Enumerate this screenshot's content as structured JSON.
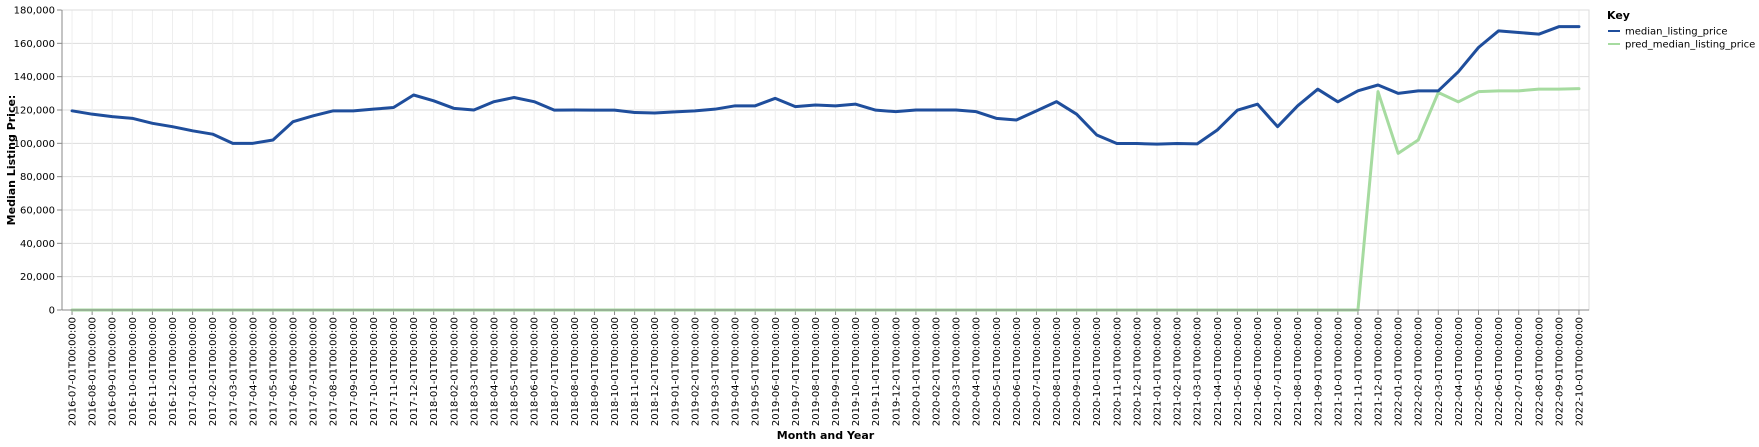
{
  "chart_data": {
    "type": "line",
    "xlabel": "Month and Year",
    "ylabel": "Median Listing Price:",
    "ylim": [
      0,
      180000
    ],
    "yticks": [
      "0",
      "20,000",
      "40,000",
      "60,000",
      "80,000",
      "100,000",
      "120,000",
      "140,000",
      "160,000",
      "180,000"
    ],
    "grid": true,
    "legend": {
      "title": "Key",
      "placement": "right"
    },
    "x": [
      "2016-07-01T00:00:00",
      "2016-08-01T00:00:00",
      "2016-09-01T00:00:00",
      "2016-10-01T00:00:00",
      "2016-11-01T00:00:00",
      "2016-12-01T00:00:00",
      "2017-01-01T00:00:00",
      "2017-02-01T00:00:00",
      "2017-03-01T00:00:00",
      "2017-04-01T00:00:00",
      "2017-05-01T00:00:00",
      "2017-06-01T00:00:00",
      "2017-07-01T00:00:00",
      "2017-08-01T00:00:00",
      "2017-09-01T00:00:00",
      "2017-10-01T00:00:00",
      "2017-11-01T00:00:00",
      "2017-12-01T00:00:00",
      "2018-01-01T00:00:00",
      "2018-02-01T00:00:00",
      "2018-03-01T00:00:00",
      "2018-04-01T00:00:00",
      "2018-05-01T00:00:00",
      "2018-06-01T00:00:00",
      "2018-07-01T00:00:00",
      "2018-08-01T00:00:00",
      "2018-09-01T00:00:00",
      "2018-10-01T00:00:00",
      "2018-11-01T00:00:00",
      "2018-12-01T00:00:00",
      "2019-01-01T00:00:00",
      "2019-02-01T00:00:00",
      "2019-03-01T00:00:00",
      "2019-04-01T00:00:00",
      "2019-05-01T00:00:00",
      "2019-06-01T00:00:00",
      "2019-07-01T00:00:00",
      "2019-08-01T00:00:00",
      "2019-09-01T00:00:00",
      "2019-10-01T00:00:00",
      "2019-11-01T00:00:00",
      "2019-12-01T00:00:00",
      "2020-01-01T00:00:00",
      "2020-02-01T00:00:00",
      "2020-03-01T00:00:00",
      "2020-04-01T00:00:00",
      "2020-05-01T00:00:00",
      "2020-06-01T00:00:00",
      "2020-07-01T00:00:00",
      "2020-08-01T00:00:00",
      "2020-09-01T00:00:00",
      "2020-10-01T00:00:00",
      "2020-11-01T00:00:00",
      "2020-12-01T00:00:00",
      "2021-01-01T00:00:00",
      "2021-02-01T00:00:00",
      "2021-03-01T00:00:00",
      "2021-04-01T00:00:00",
      "2021-05-01T00:00:00",
      "2021-06-01T00:00:00",
      "2021-07-01T00:00:00",
      "2021-08-01T00:00:00",
      "2021-09-01T00:00:00",
      "2021-10-01T00:00:00",
      "2021-11-01T00:00:00",
      "2021-12-01T00:00:00",
      "2022-01-01T00:00:00",
      "2022-02-01T00:00:00",
      "2022-03-01T00:00:00",
      "2022-04-01T00:00:00",
      "2022-05-01T00:00:00",
      "2022-06-01T00:00:00",
      "2022-07-01T00:00:00",
      "2022-08-01T00:00:00",
      "2022-09-01T00:00:00",
      "2022-10-01T00:00:00"
    ],
    "series": [
      {
        "name": "median_listing_price",
        "color": "#1f4e9c",
        "values": [
          119500,
          117500,
          116000,
          115000,
          112000,
          110000,
          107500,
          105500,
          100000,
          100000,
          102000,
          113000,
          116500,
          119500,
          119500,
          120500,
          121500,
          129000,
          125500,
          121000,
          120000,
          125000,
          127500,
          125000,
          119900,
          120000,
          119900,
          119900,
          118500,
          118200,
          118900,
          119500,
          120500,
          122500,
          122500,
          127000,
          122000,
          123000,
          122500,
          123500,
          119900,
          119000,
          120000,
          120000,
          120000,
          119000,
          115000,
          114000,
          119500,
          125000,
          117500,
          105000,
          99900,
          99900,
          99500,
          99900,
          99700,
          108000,
          119900,
          123500,
          110000,
          122500,
          132500,
          124900,
          131500,
          135000,
          130000,
          131500,
          131500,
          143000,
          157500,
          167500,
          166500,
          165500,
          170000,
          170000
        ]
      },
      {
        "name": "pred_median_listing_price",
        "color": "#a6dba0",
        "values": [
          0,
          0,
          0,
          0,
          0,
          0,
          0,
          0,
          0,
          0,
          0,
          0,
          0,
          0,
          0,
          0,
          0,
          0,
          0,
          0,
          0,
          0,
          0,
          0,
          0,
          0,
          0,
          0,
          0,
          0,
          0,
          0,
          0,
          0,
          0,
          0,
          0,
          0,
          0,
          0,
          0,
          0,
          0,
          0,
          0,
          0,
          0,
          0,
          0,
          0,
          0,
          0,
          0,
          0,
          0,
          0,
          0,
          0,
          0,
          0,
          0,
          0,
          0,
          0,
          0,
          131000,
          94000,
          102000,
          130500,
          124900,
          131000,
          131500,
          131500,
          132500,
          132500,
          132800
        ]
      }
    ]
  }
}
